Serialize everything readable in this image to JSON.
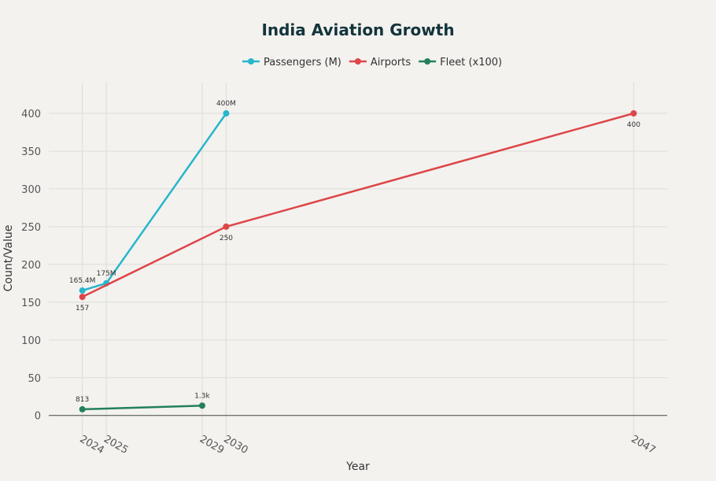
{
  "chart_data": {
    "type": "line",
    "title": "India Aviation Growth",
    "xlabel": "Year",
    "ylabel": "Count/Value",
    "xticks": [
      2024,
      2025,
      2029,
      2030,
      2047
    ],
    "yticks": [
      0,
      50,
      100,
      150,
      200,
      250,
      300,
      350,
      400
    ],
    "xlim": [
      2022.6,
      2048.4
    ],
    "ylim": [
      -18,
      425
    ],
    "grid": true,
    "legend": "top-center",
    "series": [
      {
        "name": "Passengers (M)",
        "color": "#27b6cc",
        "x": [
          2024,
          2025,
          2030
        ],
        "y": [
          165.4,
          175,
          400
        ],
        "labels": [
          "165.4M",
          "175M",
          "400M"
        ],
        "label_pos": "above"
      },
      {
        "name": "Airports",
        "color": "#de4549",
        "x": [
          2024,
          2030,
          2047
        ],
        "y": [
          157,
          250,
          400
        ],
        "labels": [
          "157",
          "250",
          "400"
        ],
        "label_pos": "below"
      },
      {
        "name": "Fleet (x100)",
        "color": "#23805a",
        "x": [
          2024,
          2029
        ],
        "y": [
          8.13,
          13
        ],
        "labels": [
          "813",
          "1.3k"
        ],
        "label_pos": "above"
      }
    ]
  }
}
